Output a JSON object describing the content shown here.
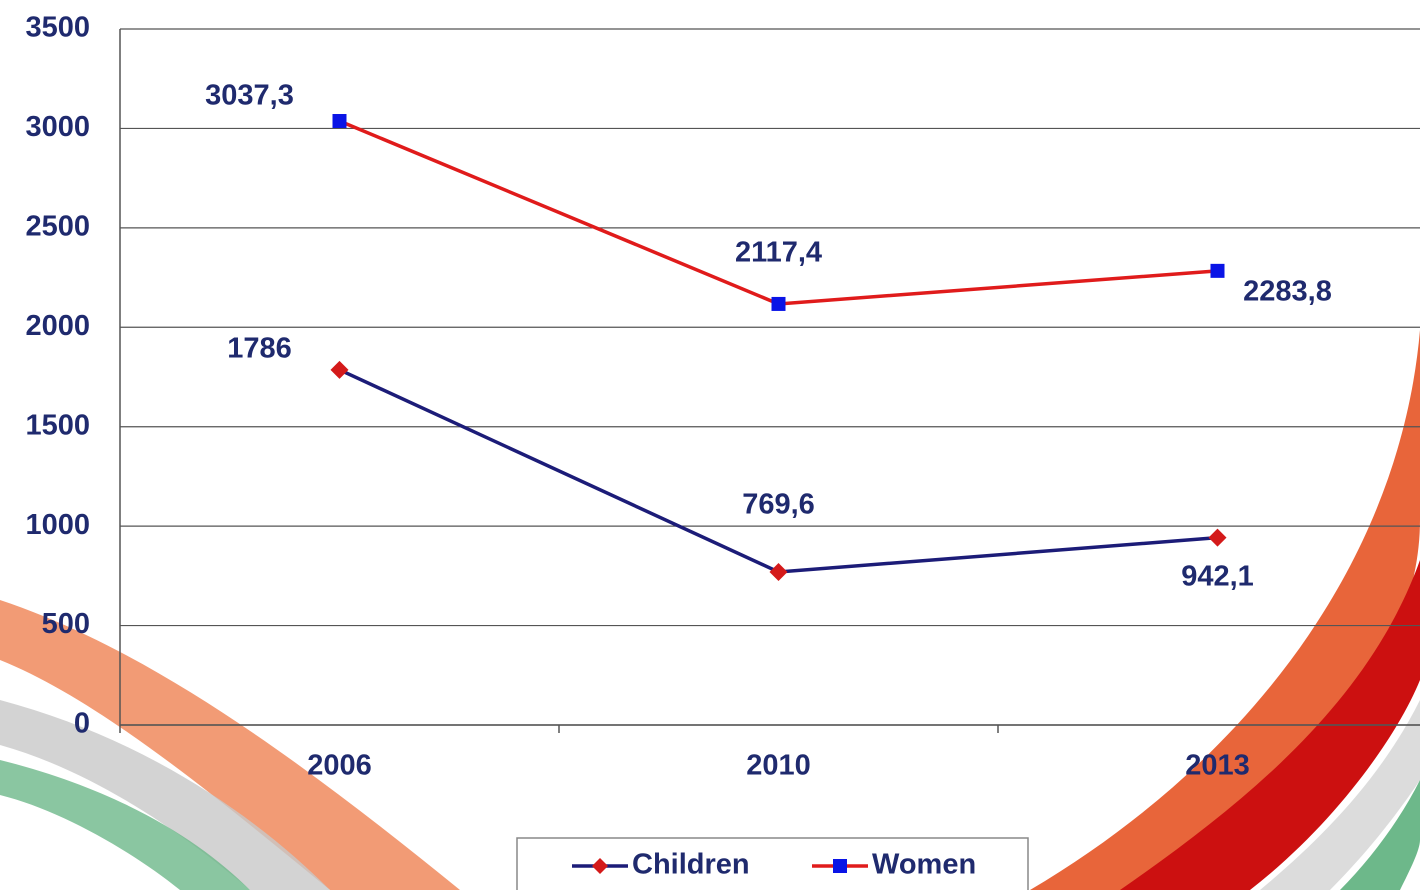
{
  "chart_data": {
    "type": "line",
    "categories": [
      "2006",
      "2010",
      "2013"
    ],
    "series": [
      {
        "name": "Children",
        "color": "#1c1c78",
        "marker": "diamond",
        "marker_color": "#d41a1a",
        "values": [
          1786,
          769.6,
          942.1
        ],
        "value_labels": [
          "1786",
          "769,6",
          "942,1"
        ]
      },
      {
        "name": "Women",
        "color": "#e01b1b",
        "marker": "square",
        "marker_color": "#0a14e6",
        "values": [
          3037.3,
          2117.4,
          2283.8
        ],
        "value_labels": [
          "3037,3",
          "2117,4",
          "2283,8"
        ]
      }
    ],
    "ylim": [
      0,
      3500
    ],
    "yticks": [
      0,
      500,
      1000,
      1500,
      2000,
      2500,
      3000,
      3500
    ],
    "grid": true,
    "legend": "bottom"
  }
}
